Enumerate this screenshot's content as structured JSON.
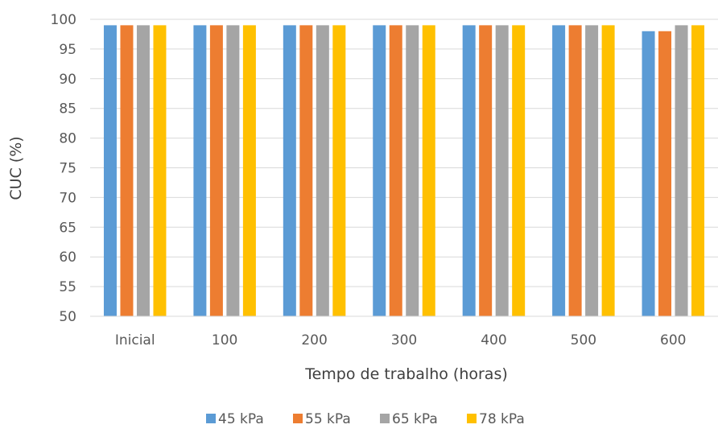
{
  "chart_data": {
    "type": "bar",
    "title": "",
    "xlabel": "Tempo de trabalho (horas)",
    "ylabel": "CUC (%)",
    "ylim": [
      50,
      100
    ],
    "yticks": [
      "50",
      "55",
      "60",
      "65",
      "70",
      "75",
      "80",
      "85",
      "90",
      "95",
      "100"
    ],
    "categories": [
      "Inicial",
      "100",
      "200",
      "300",
      "400",
      "500",
      "600"
    ],
    "series": [
      {
        "name": "45 kPa",
        "color": "#5B9BD5",
        "values": [
          99,
          99,
          99,
          99,
          99,
          99,
          98
        ]
      },
      {
        "name": "55 kPa",
        "color": "#ED7D31",
        "values": [
          99,
          99,
          99,
          99,
          99,
          99,
          98
        ]
      },
      {
        "name": "65 kPa",
        "color": "#A5A5A5",
        "values": [
          99,
          99,
          99,
          99,
          99,
          99,
          99
        ]
      },
      {
        "name": "78 kPa",
        "color": "#FFC000",
        "values": [
          99,
          99,
          99,
          99,
          99,
          99,
          99
        ]
      }
    ],
    "grid": true,
    "legend_position": "bottom"
  }
}
